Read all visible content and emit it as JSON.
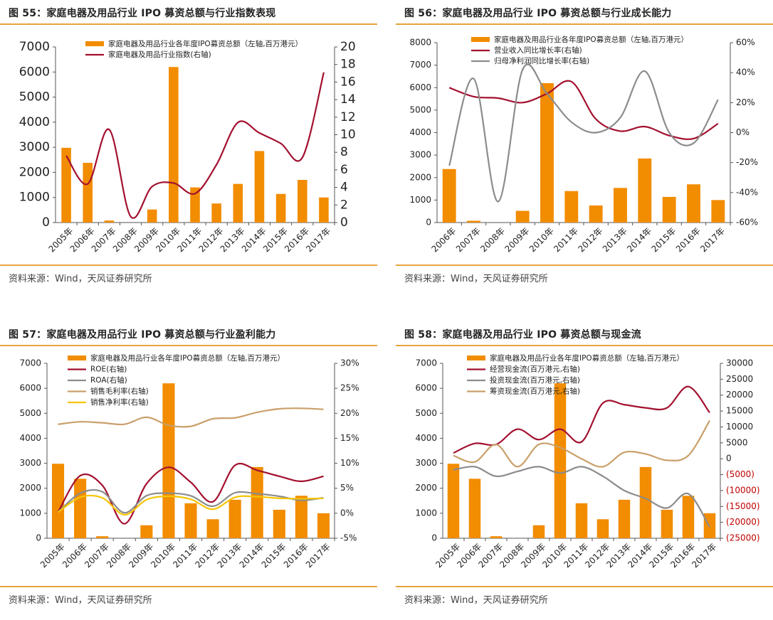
{
  "colors": {
    "bar": "#f28c00",
    "line_red": "#a3102f",
    "line_gray": "#8c8c8c",
    "line_tan": "#c9a06a",
    "line_yellow": "#f5c500",
    "negative_tick": "#c00000",
    "rule": "#e8a33d"
  },
  "source_text": "资料来源：Wind，天风证券研究所",
  "chart_data": [
    {
      "title": "图 55：家庭电器及用品行业 IPO 募资总额与行业指数表现",
      "type": "bar+line",
      "categories": [
        "2005年",
        "2006年",
        "2007年",
        "2008年",
        "2009年",
        "2010年",
        "2011年",
        "2012年",
        "2013年",
        "2014年",
        "2015年",
        "2016年",
        "2017年"
      ],
      "bar_series": {
        "name": "家庭电器及用品行业各年度IPO募资总额（左轴,百万港元）",
        "values": [
          2980,
          2380,
          80,
          0,
          520,
          6200,
          1400,
          760,
          1540,
          2850,
          1140,
          1700,
          1000
        ]
      },
      "line_series": [
        {
          "name": "家庭电器及用品行业指数(右轴)",
          "color": "#a3102f",
          "values": [
            7.6,
            4.4,
            10.6,
            0.7,
            4.1,
            4.5,
            3.3,
            6.6,
            11.4,
            10.2,
            9.0,
            7.4,
            17.1
          ]
        }
      ],
      "left_axis": {
        "min": 0,
        "max": 7000,
        "ticks": [
          0,
          1000,
          2000,
          3000,
          4000,
          5000,
          6000,
          7000
        ],
        "labels": [
          "0",
          "1000",
          "2000",
          "3000",
          "4000",
          "5000",
          "6000",
          "7000"
        ]
      },
      "right_axis": {
        "min": 0,
        "max": 20,
        "ticks": [
          0,
          2,
          4,
          6,
          8,
          10,
          12,
          14,
          16,
          18,
          20
        ],
        "labels": [
          "0",
          "2",
          "4",
          "6",
          "8",
          "10",
          "12",
          "14",
          "16",
          "18",
          "20"
        ]
      }
    },
    {
      "title": "图 56：家庭电器及用品行业 IPO 募资总额与行业成长能力",
      "type": "bar+line",
      "categories": [
        "2006年",
        "2007年",
        "2008年",
        "2009年",
        "2010年",
        "2011年",
        "2012年",
        "2013年",
        "2014年",
        "2015年",
        "2016年",
        "2017年"
      ],
      "bar_series": {
        "name": "家庭电器及用品行业各年度IPO募资总额（左轴,百万港元）",
        "values": [
          2380,
          80,
          0,
          520,
          6200,
          1400,
          760,
          1540,
          2850,
          1140,
          1700,
          1000
        ]
      },
      "line_series": [
        {
          "name": "营业收入同比增长率(右轴)",
          "color": "#a3102f",
          "values": [
            30,
            24,
            23,
            20,
            26,
            34,
            9,
            1,
            4,
            -2,
            -4,
            6
          ]
        },
        {
          "name": "归母净利润同比增长率(右轴)",
          "color": "#8c8c8c",
          "values": [
            -22,
            36,
            -46,
            42,
            26,
            7,
            0,
            10,
            41,
            0,
            -7,
            22
          ]
        }
      ],
      "left_axis": {
        "min": 0,
        "max": 8000,
        "ticks": [
          0,
          1000,
          2000,
          3000,
          4000,
          5000,
          6000,
          7000,
          8000
        ],
        "labels": [
          "0",
          "1000",
          "2000",
          "3000",
          "4000",
          "5000",
          "6000",
          "7000",
          "8000"
        ]
      },
      "right_axis": {
        "min": -60,
        "max": 60,
        "ticks": [
          -60,
          -40,
          -20,
          0,
          20,
          40,
          60
        ],
        "labels": [
          "-60%",
          "-40%",
          "-20%",
          "0%",
          "20%",
          "40%",
          "60%"
        ]
      }
    },
    {
      "title": "图 57：家庭电器及用品行业 IPO 募资总额与行业盈利能力",
      "type": "bar+line",
      "categories": [
        "2005年",
        "2006年",
        "2007年",
        "2008年",
        "2009年",
        "2010年",
        "2011年",
        "2012年",
        "2013年",
        "2014年",
        "2015年",
        "2016年",
        "2017年"
      ],
      "bar_series": {
        "name": "家庭电器及用品行业各年度IPO募资总额（左轴,百万港元）",
        "values": [
          2980,
          2380,
          80,
          0,
          520,
          6200,
          1400,
          760,
          1540,
          2850,
          1140,
          1700,
          1000
        ]
      },
      "line_series": [
        {
          "name": "ROE(右轴)",
          "color": "#a3102f",
          "values": [
            0.2,
            7.5,
            5.6,
            -2.1,
            5.9,
            9.2,
            6.2,
            2.3,
            9.6,
            8.6,
            7.4,
            6.4,
            7.4
          ]
        },
        {
          "name": "ROA(右轴)",
          "color": "#8c8c8c",
          "values": [
            0.2,
            4.0,
            4.3,
            0.1,
            3.5,
            4.0,
            3.5,
            1.4,
            4.1,
            3.9,
            3.4,
            2.6,
            3.1
          ]
        },
        {
          "name": "销售毛利率(右轴)",
          "color": "#c9a06a",
          "values": [
            17.8,
            18.3,
            18.1,
            17.8,
            19.2,
            17.6,
            17.4,
            18.9,
            19.1,
            20.2,
            20.9,
            21.0,
            20.8
          ]
        },
        {
          "name": "销售净利率(右轴)",
          "color": "#f5c500",
          "values": [
            0.2,
            3.2,
            3.1,
            -0.3,
            2.7,
            3.4,
            2.8,
            0.8,
            3.2,
            3.3,
            3.0,
            2.9,
            3.0
          ]
        }
      ],
      "left_axis": {
        "min": 0,
        "max": 7000,
        "ticks": [
          0,
          1000,
          2000,
          3000,
          4000,
          5000,
          6000,
          7000
        ],
        "labels": [
          "0",
          "1000",
          "2000",
          "3000",
          "4000",
          "5000",
          "6000",
          "7000"
        ]
      },
      "right_axis": {
        "min": -5,
        "max": 30,
        "ticks": [
          -5,
          0,
          5,
          10,
          15,
          20,
          25,
          30
        ],
        "labels": [
          "-5%",
          "0%",
          "5%",
          "10%",
          "15%",
          "20%",
          "25%",
          "30%"
        ]
      }
    },
    {
      "title": "图 58：家庭电器及用品行业 IPO 募资总额与现金流",
      "type": "bar+line",
      "categories": [
        "2005年",
        "2006年",
        "2007年",
        "2008年",
        "2009年",
        "2010年",
        "2011年",
        "2012年",
        "2013年",
        "2014年",
        "2015年",
        "2016年",
        "2017年"
      ],
      "bar_series": {
        "name": "家庭电器及用品行业各年度IPO募资总额（左轴,百万港元）",
        "values": [
          2980,
          2380,
          80,
          0,
          520,
          6200,
          1400,
          760,
          1540,
          2850,
          1140,
          1700,
          1000
        ]
      },
      "line_series": [
        {
          "name": "经营现金流(百万港元,右轴)",
          "color": "#a3102f",
          "values": [
            1800,
            4800,
            4500,
            9300,
            6000,
            9300,
            5300,
            17500,
            17000,
            16000,
            16000,
            22700,
            14500
          ]
        },
        {
          "name": "投资现金流(百万港元,右轴)",
          "color": "#8c8c8c",
          "values": [
            -3500,
            -2500,
            -5500,
            -4000,
            -2500,
            -4500,
            -2500,
            -5500,
            -10000,
            -12500,
            -15500,
            -11000,
            -21500
          ]
        },
        {
          "name": "筹资现金流(百万港元,右轴)",
          "color": "#c9a06a",
          "values": [
            1000,
            -1000,
            4500,
            -2500,
            4500,
            3500,
            0,
            -2500,
            2000,
            1500,
            -500,
            1000,
            12000
          ]
        }
      ],
      "left_axis": {
        "min": 0,
        "max": 7000,
        "ticks": [
          0,
          1000,
          2000,
          3000,
          4000,
          5000,
          6000,
          7000
        ],
        "labels": [
          "0",
          "1000",
          "2000",
          "3000",
          "4000",
          "5000",
          "6000",
          "7000"
        ]
      },
      "right_axis": {
        "min": -25000,
        "max": 30000,
        "ticks": [
          -25000,
          -20000,
          -15000,
          -10000,
          -5000,
          0,
          5000,
          10000,
          15000,
          20000,
          25000,
          30000
        ],
        "labels": [
          "(25000)",
          "(20000)",
          "(15000)",
          "(10000)",
          "(5000)",
          "0",
          "5000",
          "10000",
          "15000",
          "20000",
          "25000",
          "30000"
        ]
      }
    }
  ]
}
